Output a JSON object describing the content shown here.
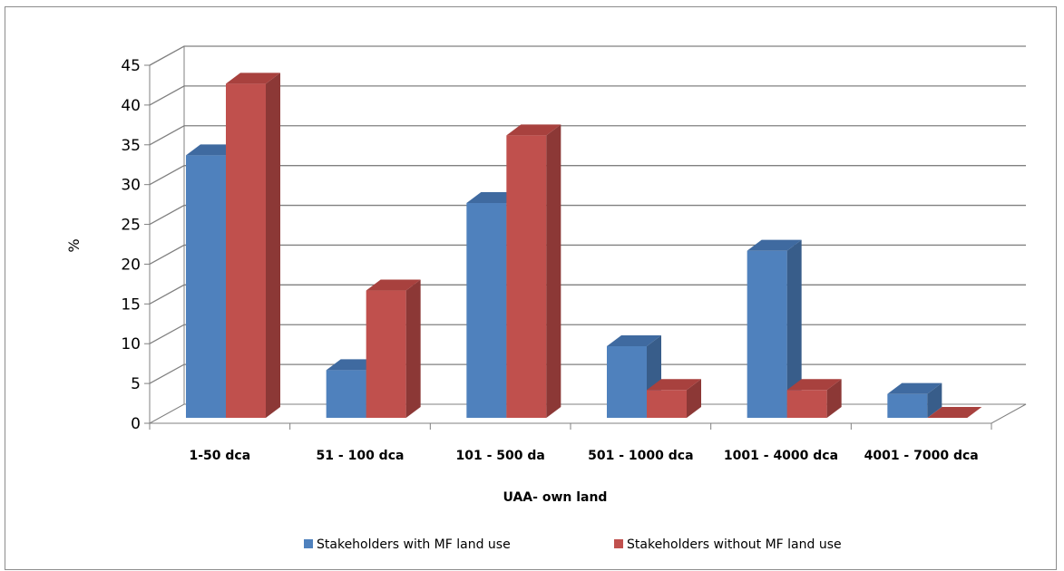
{
  "chart_data": {
    "type": "bar",
    "title": "",
    "xlabel": "UAA- own land",
    "ylabel": "%",
    "ylim": [
      0,
      45
    ],
    "yticks": [
      0,
      5,
      10,
      15,
      20,
      25,
      30,
      35,
      40,
      45
    ],
    "categories": [
      "1-50 dca",
      "51 - 100 dca",
      "101 - 500 da",
      "501 - 1000 dca",
      "1001 - 4000 dca",
      "4001 - 7000 dca"
    ],
    "series": [
      {
        "name": "Stakeholders with MF land use",
        "values": [
          33,
          6,
          27,
          9,
          21,
          3
        ],
        "color": "#4f81bd",
        "color_side": "#385d8a",
        "color_top": "#3f6aa0"
      },
      {
        "name": "Stakeholders without MF land use",
        "values": [
          42,
          16,
          35.5,
          3.5,
          3.5,
          0
        ],
        "color": "#c0504d",
        "color_side": "#8c3836",
        "color_top": "#a8413e"
      }
    ],
    "grid": true,
    "legend_position": "bottom",
    "style": "3d-clustered-column"
  }
}
